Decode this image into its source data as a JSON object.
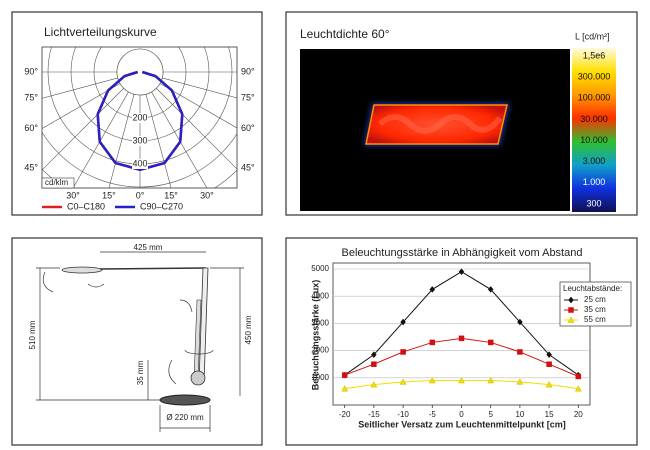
{
  "polar": {
    "title": "Lichtverteilungskurve",
    "unit": "cd/klm",
    "side_angle_labels": [
      "90°",
      "75°",
      "60°",
      "45°"
    ],
    "bottom_angle_labels": [
      "30°",
      "15°",
      "0°",
      "15°",
      "30°"
    ],
    "radial_ticks": [
      200,
      300,
      400
    ],
    "angles": [
      0,
      15,
      30,
      45,
      60,
      75,
      90
    ],
    "series": [
      {
        "name": "C0–C180",
        "color": "#e02020",
        "values": [
          425,
          410,
          350,
          260,
          160,
          70,
          10
        ]
      },
      {
        "name": "C90–C270",
        "color": "#2323c8",
        "values": [
          425,
          410,
          350,
          260,
          160,
          70,
          10
        ]
      }
    ]
  },
  "luminance": {
    "title": "Leuchtdichte 60°",
    "unit": "L [cd/m²]",
    "scale_labels": [
      "1,5e6",
      "300.000",
      "100.000",
      "30.000",
      "10.000",
      "3.000",
      "1.000",
      "300"
    ],
    "scale_colors": [
      "#fffbe0",
      "#ffe000",
      "#ff9a00",
      "#ff3000",
      "#30c030",
      "#10a0c8",
      "#1030e0",
      "#101050"
    ]
  },
  "dimensions": {
    "labels": [
      "425 mm",
      "510 mm",
      "450 mm",
      "35 mm",
      "Ø 220 mm"
    ]
  },
  "chart_data": {
    "type": "line",
    "title": "Beleuchtungsstärke in Abhängigkeit vom Abstand",
    "x_label": "Seitlicher Versatz zum Leuchtenmittelpunkt [cm]",
    "y_label": "Beleuchtungsstärke (Lux)",
    "x": [
      -20,
      -15,
      -10,
      -5,
      0,
      5,
      10,
      15,
      20
    ],
    "xlim": [
      -22,
      22
    ],
    "xticks": [
      -20,
      -15,
      -10,
      -5,
      0,
      5,
      10,
      15,
      20
    ],
    "ylim": [
      0,
      5000
    ],
    "yticks": [
      1000,
      2000,
      3000,
      4000,
      5000
    ],
    "grid": true,
    "legend_title": "Leuchtabstände:",
    "legend": "upper right",
    "series": [
      {
        "name": "25 cm",
        "color": "#111111",
        "marker": "diamond",
        "values": [
          1100,
          1850,
          3050,
          4250,
          4900,
          4250,
          3050,
          1850,
          1100
        ]
      },
      {
        "name": "35 cm",
        "color": "#d01010",
        "marker": "square",
        "values": [
          1100,
          1500,
          1950,
          2300,
          2450,
          2300,
          1950,
          1500,
          1050
        ]
      },
      {
        "name": "55 cm",
        "color": "#f0e000",
        "marker": "triangle",
        "values": [
          600,
          750,
          850,
          900,
          900,
          900,
          850,
          750,
          600
        ]
      }
    ]
  }
}
